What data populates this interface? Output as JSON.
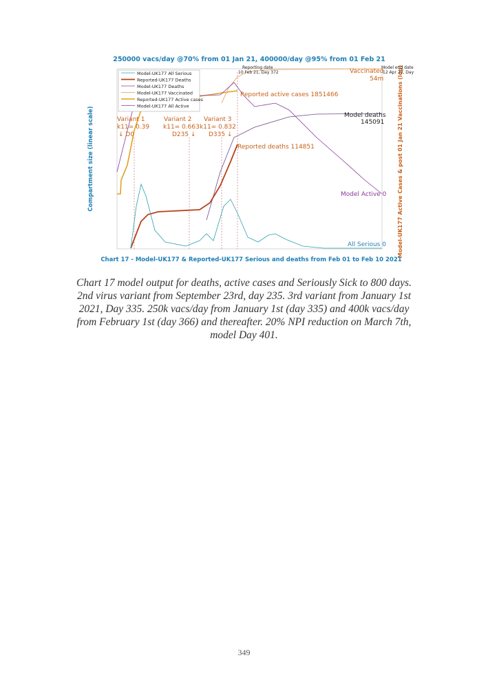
{
  "figure": {
    "title": "250000 vacs/day @70% from 01 Jan 21, 400000/day @95% from 01 Feb 21",
    "y_label": "Compartment size (linear scale)",
    "y2_label": "Model-UK177 Active Cases & post 01 Jan 21 Vaccinations (log)",
    "bottom_title": "Chart 17 - Model-UK177 & Reported-UK177 Serious and deaths from Feb 01 to Feb 10 2021",
    "legend": [
      "Model-UK177 All Serious",
      "Reported-UK177 Deaths",
      "Model-UK177 Deaths",
      "Model-UK177 Vaccinated",
      "Reported-UK177 Active cases",
      "Model-UK177 All Active"
    ],
    "annotations": {
      "variant1": [
        "Variant 1",
        "k11= 0.39",
        "↓ D0"
      ],
      "variant2": [
        "Variant 2",
        "k11= 0.663",
        "D235 ↓"
      ],
      "variant3": [
        "Variant 3",
        "k11= 0.832",
        "D335 ↓"
      ],
      "reporting_date": [
        "Reporting date",
        "10 Feb 21, Day 372"
      ],
      "model_end": [
        "Model end date",
        "12 Apr 23, Day"
      ],
      "vaccinated": [
        "Vaccinated",
        "54m"
      ],
      "reported_active": "Reported active cases 1851466",
      "model_deaths": [
        "Model deaths",
        "145091"
      ],
      "reported_deaths": "Reported deaths 114851",
      "model_active": "Model Active 0",
      "all_serious": "All Serious 0"
    }
  },
  "caption": {
    "lines": [
      "Chart 17 model output for deaths, active cases and Seriously Sick to 800 days.",
      "2nd virus variant from September 23rd, day 235. 3rd variant from January 1st",
      "2021, Day 335. 250k vacs/day from January 1st (day 335) and 400k vacs/day",
      "from February 1st (day 366) and thereafter. 20% NPI reduction on March 7th,",
      "model Day 401."
    ]
  },
  "page_number": "349"
}
